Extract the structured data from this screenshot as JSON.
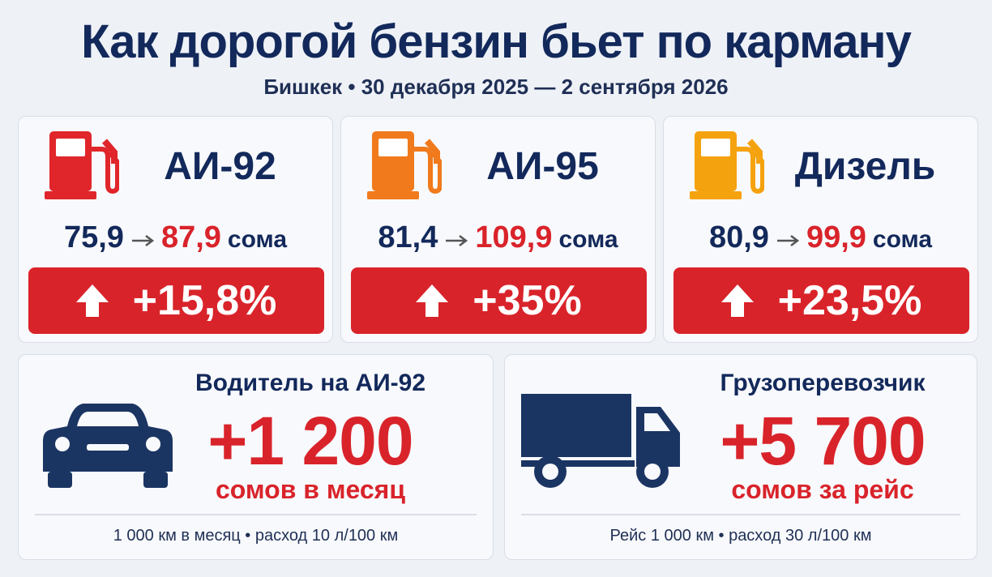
{
  "header": {
    "title": "Как дорогой бензин бьет по карману",
    "subtitle": "Бишкек • 30 декабря 2025 — 2 сентября 2026"
  },
  "fuels": [
    {
      "name": "АИ-92",
      "old_price": "75,9",
      "new_price": "87,9",
      "unit": "сома",
      "change": "+15,8%"
    },
    {
      "name": "АИ-95",
      "old_price": "81,4",
      "new_price": "109,9",
      "unit": "сома",
      "change": "+35%"
    },
    {
      "name": "Дизель",
      "old_price": "80,9",
      "new_price": "99,9",
      "unit": "сома",
      "change": "+23,5%"
    }
  ],
  "impacts": [
    {
      "title": "Водитель на АИ-92",
      "amount": "+1 200",
      "unit": "сомов в месяц",
      "note": "1 000 км в месяц • расход 10 л/100 км"
    },
    {
      "title": "Грузоперевозчик",
      "amount": "+5 700",
      "unit": "сомов за рейс",
      "note": "Рейс 1 000 км • расход 30 л/100 км"
    }
  ]
}
